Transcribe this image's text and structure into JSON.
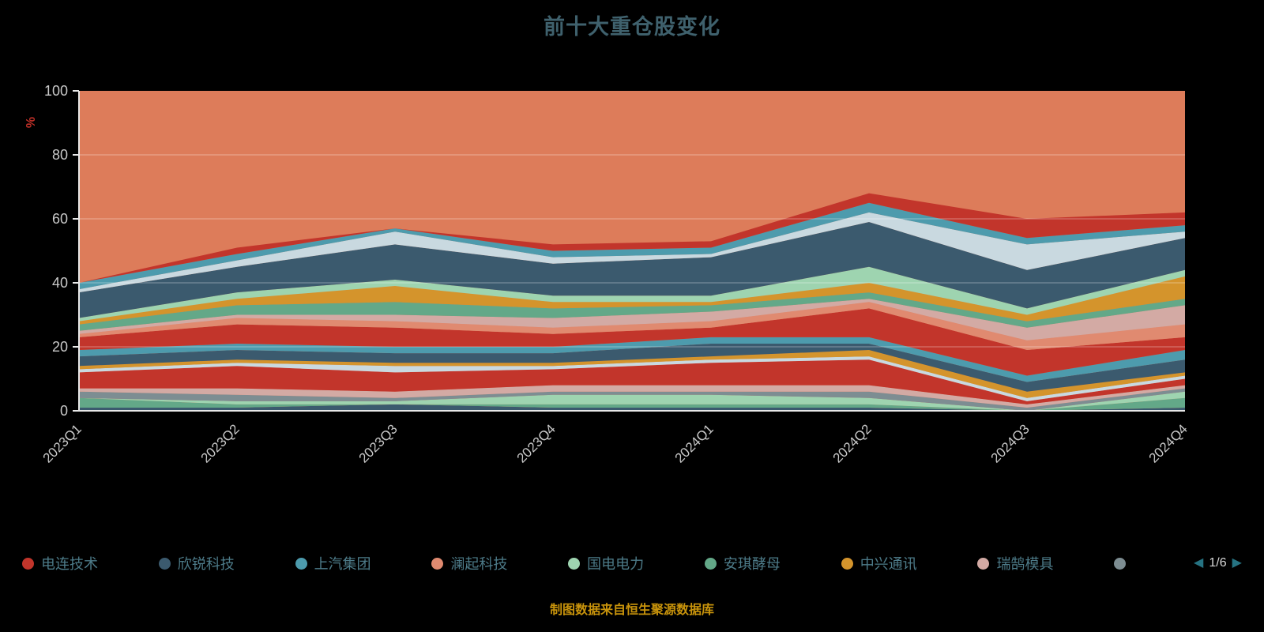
{
  "title": "前十大重仓股变化",
  "footer": "制图数据来自恒生聚源数据库",
  "y_axis": {
    "label": "%",
    "label_color": "#c03028",
    "ticks": [
      0,
      20,
      40,
      60,
      80,
      100
    ]
  },
  "legend": {
    "items": [
      {
        "label": "电连技术",
        "color": "#c2352b"
      },
      {
        "label": "欣锐科技",
        "color": "#3b5a6e"
      },
      {
        "label": "上汽集团",
        "color": "#4d9bad"
      },
      {
        "label": "澜起科技",
        "color": "#e08a70"
      },
      {
        "label": "国电电力",
        "color": "#9ed4b0"
      },
      {
        "label": "安琪酵母",
        "color": "#63a888"
      },
      {
        "label": "中兴通讯",
        "color": "#d4942c"
      },
      {
        "label": "瑞鹄模具",
        "color": "#d3aaa4"
      },
      {
        "label": "",
        "color": "#7d8d92"
      }
    ],
    "pagination": {
      "prev_icon": "◀",
      "current": "1/6",
      "next_icon": "▶"
    }
  },
  "chart_data": {
    "type": "area",
    "stacked": true,
    "title": "前十大重仓股变化",
    "xlabel": "",
    "ylabel": "%",
    "ylim": [
      0,
      100
    ],
    "grid": true,
    "legend_position": "bottom",
    "fill_to_100_color": "#dd7c5a",
    "x": [
      "2023Q1",
      "2023Q2",
      "2023Q3",
      "2023Q4",
      "2024Q1",
      "2024Q2",
      "2024Q3",
      "2024Q4"
    ],
    "series": [
      {
        "name": "",
        "color": "#3b5a6e",
        "values": [
          1,
          1,
          2,
          1,
          1,
          1,
          0,
          1
        ]
      },
      {
        "name": "",
        "color": "#63a888",
        "values": [
          3,
          1,
          0,
          1,
          1,
          1,
          0,
          3
        ]
      },
      {
        "name": "",
        "color": "#9ed4b0",
        "values": [
          0,
          1,
          1,
          3,
          3,
          2,
          0,
          2
        ]
      },
      {
        "name": "",
        "color": "#7d8d92",
        "values": [
          2,
          2,
          1,
          1,
          1,
          2,
          1,
          1
        ]
      },
      {
        "name": "",
        "color": "#d3aaa4",
        "values": [
          1,
          2,
          2,
          2,
          2,
          2,
          1,
          1
        ]
      },
      {
        "name": "",
        "color": "#c2352b",
        "values": [
          5,
          7,
          6,
          5,
          7,
          8,
          1,
          2
        ]
      },
      {
        "name": "",
        "color": "#c9d9e0",
        "values": [
          1,
          1,
          2,
          1,
          1,
          1,
          1,
          1
        ]
      },
      {
        "name": "",
        "color": "#d4942c",
        "values": [
          1,
          1,
          1,
          1,
          1,
          2,
          2,
          1
        ]
      },
      {
        "name": "",
        "color": "#3b5a6e",
        "values": [
          3,
          3,
          3,
          3,
          4,
          2,
          3,
          4
        ]
      },
      {
        "name": "上汽集团",
        "color": "#4d9bad",
        "values": [
          2,
          2,
          2,
          2,
          2,
          2,
          2,
          3
        ]
      },
      {
        "name": "电连技术",
        "color": "#c2352b",
        "values": [
          4,
          6,
          6,
          4,
          3,
          9,
          8,
          4
        ]
      },
      {
        "name": "澜起科技",
        "color": "#e08a70",
        "values": [
          1,
          2,
          2,
          2,
          2,
          2,
          3,
          4
        ]
      },
      {
        "name": "瑞鹄模具",
        "color": "#d3aaa4",
        "values": [
          1,
          1,
          2,
          3,
          3,
          1,
          4,
          6
        ]
      },
      {
        "name": "安琪酵母",
        "color": "#63a888",
        "values": [
          2,
          3,
          4,
          3,
          2,
          2,
          2,
          2
        ]
      },
      {
        "name": "中兴通讯",
        "color": "#d4942c",
        "values": [
          1,
          2,
          5,
          2,
          1,
          3,
          2,
          7
        ]
      },
      {
        "name": "国电电力",
        "color": "#9ed4b0",
        "values": [
          1,
          2,
          2,
          2,
          2,
          5,
          2,
          2
        ]
      },
      {
        "name": "欣锐科技",
        "color": "#3b5a6e",
        "values": [
          8,
          8,
          11,
          10,
          12,
          14,
          12,
          10
        ]
      },
      {
        "name": "",
        "color": "#c9d9e0",
        "values": [
          1,
          2,
          4,
          2,
          1,
          3,
          8,
          2
        ]
      },
      {
        "name": "",
        "color": "#4d9bad",
        "values": [
          2,
          2,
          1,
          2,
          2,
          3,
          2,
          2
        ]
      },
      {
        "name": "",
        "color": "#c2352b",
        "values": [
          0,
          2,
          0,
          2,
          2,
          3,
          6,
          4
        ]
      }
    ]
  }
}
